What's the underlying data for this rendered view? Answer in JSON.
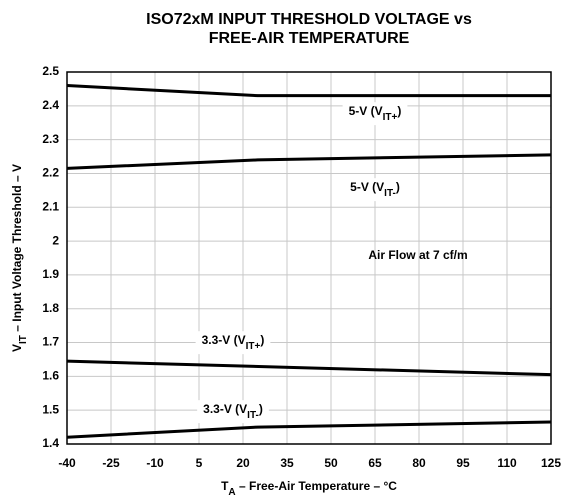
{
  "chart_data": {
    "type": "line",
    "title": [
      "ISO72xM INPUT THRESHOLD VOLTAGE vs",
      "FREE-AIR TEMPERATURE"
    ],
    "xlabel": [
      "T",
      "A",
      " – Free-Air Temperature – °C"
    ],
    "ylabel": [
      "V",
      "IT",
      " – Input Voltage Threshold – V"
    ],
    "annotation": "Air Flow at 7 cf/m",
    "series": [
      {
        "name": [
          "5-V (V",
          "IT+",
          ")"
        ],
        "color": "#000000",
        "x": [
          -40,
          25,
          125
        ],
        "values": [
          2.46,
          2.43,
          2.43
        ]
      },
      {
        "name": [
          "5-V (V",
          "IT-",
          ")"
        ],
        "color": "#000000",
        "x": [
          -40,
          25,
          125
        ],
        "values": [
          2.215,
          2.24,
          2.255
        ]
      },
      {
        "name": [
          "3.3-V (V",
          "IT+",
          ")"
        ],
        "color": "#000000",
        "x": [
          -40,
          125
        ],
        "values": [
          1.645,
          1.605
        ]
      },
      {
        "name": [
          "3.3-V (V",
          "IT-",
          ")"
        ],
        "color": "#000000",
        "x": [
          -40,
          25,
          125
        ],
        "values": [
          1.42,
          1.45,
          1.465
        ]
      }
    ],
    "xlim": [
      -40,
      125
    ],
    "xticks": [
      -40,
      -25,
      -10,
      5,
      20,
      35,
      50,
      65,
      80,
      95,
      110,
      125
    ],
    "ylim": [
      1.4,
      2.5
    ],
    "yticks": [
      1.4,
      1.5,
      1.6,
      1.7,
      1.8,
      1.9,
      2,
      2.1,
      2.2,
      2.3,
      2.4,
      2.5
    ],
    "grid": true
  }
}
